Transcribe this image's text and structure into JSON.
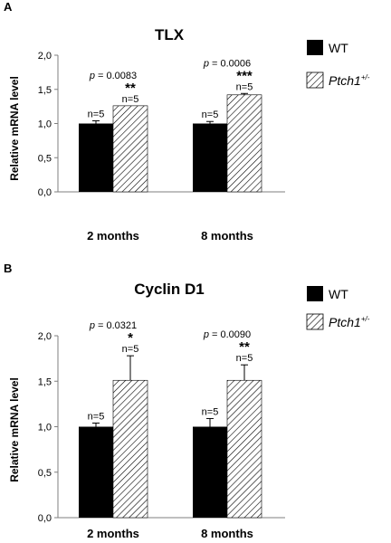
{
  "legend": {
    "wt": "WT",
    "ptch_base": "Ptch1",
    "ptch_sup": "+/-"
  },
  "colors": {
    "wt": "#000000",
    "ptch_stroke": "#000000",
    "axis": "#7f7f7f"
  },
  "chart_data": [
    {
      "panel": "A",
      "type": "bar",
      "title": "TLX",
      "ylabel": "Relative mRNA level",
      "ylim": [
        0,
        2
      ],
      "yticks": [
        "0,0",
        "0,5",
        "1,0",
        "1,5",
        "2,0"
      ],
      "categories": [
        "2 months",
        "8 months"
      ],
      "series": [
        {
          "name": "WT",
          "values": [
            1.0,
            1.0
          ],
          "errors": [
            0.04,
            0.03
          ],
          "n": [
            "n=5",
            "n=5"
          ]
        },
        {
          "name": "Ptch1+/-",
          "values": [
            1.26,
            1.42
          ],
          "errors": [
            0.0,
            0.02
          ],
          "n": [
            "n=5",
            "n=5"
          ]
        }
      ],
      "annotations": [
        {
          "p": "p = 0.0083",
          "stars": "**"
        },
        {
          "p": "p = 0.0006",
          "stars": "***"
        }
      ]
    },
    {
      "panel": "B",
      "type": "bar",
      "title": "Cyclin D1",
      "ylabel": "Relative mRNA level",
      "ylim": [
        0,
        2
      ],
      "yticks": [
        "0,0",
        "0,5",
        "1,0",
        "1,5",
        "2,0"
      ],
      "categories": [
        "2 months",
        "8 months"
      ],
      "series": [
        {
          "name": "WT",
          "values": [
            1.0,
            1.0
          ],
          "errors": [
            0.04,
            0.09
          ],
          "n": [
            "n=5",
            "n=5"
          ]
        },
        {
          "name": "Ptch1+/-",
          "values": [
            1.51,
            1.51
          ],
          "errors": [
            0.27,
            0.17
          ],
          "n": [
            "n=5",
            "n=5"
          ]
        }
      ],
      "annotations": [
        {
          "p": "p = 0.0321",
          "stars": "*"
        },
        {
          "p": "p = 0.0090",
          "stars": "**"
        }
      ]
    }
  ]
}
